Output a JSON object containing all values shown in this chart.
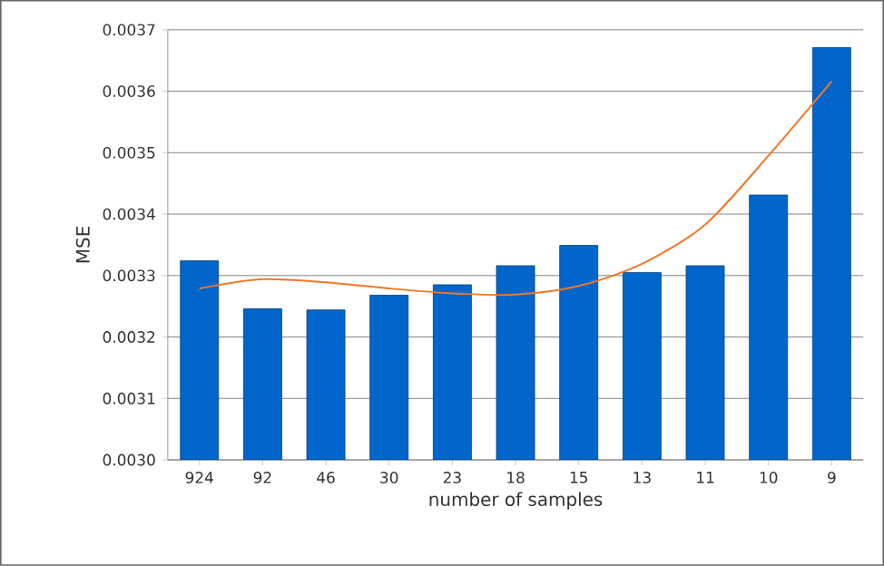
{
  "chart_data": {
    "type": "bar",
    "xlabel": "number of samples",
    "ylabel": "MSE",
    "categories": [
      "924",
      "92",
      "46",
      "30",
      "23",
      "18",
      "15",
      "13",
      "11",
      "10",
      "9"
    ],
    "series": [
      {
        "color": "#0066cc",
        "values": [
          0.003324,
          0.003246,
          0.003244,
          0.003268,
          0.003285,
          0.003316,
          0.003349,
          0.003305,
          0.003316,
          0.003431,
          0.003671
        ]
      },
      {
        "type": "line",
        "color": "#f07828",
        "values": [
          0.003279,
          0.003294,
          0.003289,
          0.003279,
          0.003271,
          0.003269,
          0.003283,
          0.003319,
          0.003383,
          0.003495,
          0.003616
        ]
      }
    ],
    "ylim": [
      0.003,
      0.0037
    ],
    "yticks": [
      {
        "value": 0.003,
        "label": "0.0030"
      },
      {
        "value": 0.0031,
        "label": "0.0031"
      },
      {
        "value": 0.0032,
        "label": "0.0032"
      },
      {
        "value": 0.0033,
        "label": "0.0033"
      },
      {
        "value": 0.0034,
        "label": "0.0034"
      },
      {
        "value": 0.0035,
        "label": "0.0035"
      },
      {
        "value": 0.0036,
        "label": "0.0036"
      },
      {
        "value": 0.0037,
        "label": "0.0037"
      }
    ],
    "grid": "y"
  }
}
